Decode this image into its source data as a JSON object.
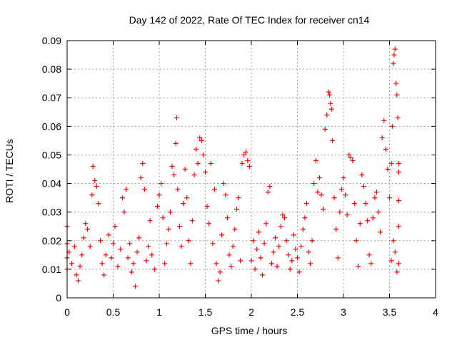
{
  "chart_data": {
    "type": "scatter",
    "title": "Day 142 of 2022, Rate Of TEC Index for receiver cn14",
    "xlabel": "GPS time / hours",
    "ylabel": "ROTI / TECUs",
    "xlim": [
      0,
      4
    ],
    "ylim": [
      0,
      0.09
    ],
    "xticks": [
      0,
      0.5,
      1,
      1.5,
      2,
      2.5,
      3,
      3.5,
      4
    ],
    "xtick_labels": [
      "0",
      "0.5",
      "1",
      "1.5",
      "2",
      "2.5",
      "3",
      "3.5",
      "4"
    ],
    "yticks": [
      0,
      0.01,
      0.02,
      0.03,
      0.04,
      0.05,
      0.06,
      0.07,
      0.08,
      0.09
    ],
    "ytick_labels": [
      "0",
      "0.01",
      "0.02",
      "0.03",
      "0.04",
      "0.05",
      "0.06",
      "0.07",
      "0.08",
      "0.09"
    ],
    "grid": true,
    "marker": "+",
    "color": "#ff0000",
    "series": [
      {
        "name": "cn14",
        "points": [
          [
            0.0,
            0.025
          ],
          [
            0.0,
            0.019
          ],
          [
            0.0,
            0.014
          ],
          [
            0.0,
            0.01
          ],
          [
            0.02,
            0.016
          ],
          [
            0.05,
            0.012
          ],
          [
            0.08,
            0.018
          ],
          [
            0.1,
            0.008
          ],
          [
            0.12,
            0.006
          ],
          [
            0.14,
            0.011
          ],
          [
            0.16,
            0.015
          ],
          [
            0.18,
            0.021
          ],
          [
            0.2,
            0.026
          ],
          [
            0.22,
            0.024
          ],
          [
            0.25,
            0.018
          ],
          [
            0.27,
            0.036
          ],
          [
            0.28,
            0.046
          ],
          [
            0.3,
            0.041
          ],
          [
            0.32,
            0.039
          ],
          [
            0.34,
            0.033
          ],
          [
            0.36,
            0.02
          ],
          [
            0.38,
            0.012
          ],
          [
            0.4,
            0.008
          ],
          [
            0.42,
            0.015
          ],
          [
            0.45,
            0.022
          ],
          [
            0.48,
            0.014
          ],
          [
            0.5,
            0.019
          ],
          [
            0.52,
            0.025
          ],
          [
            0.55,
            0.011
          ],
          [
            0.58,
            0.017
          ],
          [
            0.6,
            0.035
          ],
          [
            0.62,
            0.03
          ],
          [
            0.64,
            0.038
          ],
          [
            0.66,
            0.014
          ],
          [
            0.68,
            0.019
          ],
          [
            0.7,
            0.009
          ],
          [
            0.72,
            0.012
          ],
          [
            0.74,
            0.004
          ],
          [
            0.76,
            0.016
          ],
          [
            0.78,
            0.021
          ],
          [
            0.8,
            0.042
          ],
          [
            0.82,
            0.047
          ],
          [
            0.84,
            0.038
          ],
          [
            0.86,
            0.013
          ],
          [
            0.88,
            0.018
          ],
          [
            0.9,
            0.027
          ],
          [
            0.92,
            0.015
          ],
          [
            0.95,
            0.01
          ],
          [
            0.98,
            0.032
          ],
          [
            1.0,
            0.036
          ],
          [
            1.02,
            0.04
          ],
          [
            1.04,
            0.028
          ],
          [
            1.06,
            0.012
          ],
          [
            1.08,
            0.019
          ],
          [
            1.1,
            0.024
          ],
          [
            1.12,
            0.03
          ],
          [
            1.14,
            0.046
          ],
          [
            1.16,
            0.043
          ],
          [
            1.18,
            0.054
          ],
          [
            1.19,
            0.063
          ],
          [
            1.2,
            0.038
          ],
          [
            1.22,
            0.025
          ],
          [
            1.24,
            0.018
          ],
          [
            1.26,
            0.033
          ],
          [
            1.28,
            0.045
          ],
          [
            1.3,
            0.035
          ],
          [
            1.32,
            0.02
          ],
          [
            1.34,
            0.012
          ],
          [
            1.36,
            0.027
          ],
          [
            1.38,
            0.043
          ],
          [
            1.4,
            0.052
          ],
          [
            1.42,
            0.047
          ],
          [
            1.44,
            0.056
          ],
          [
            1.46,
            0.055
          ],
          [
            1.48,
            0.05
          ],
          [
            1.5,
            0.044
          ],
          [
            1.52,
            0.032
          ],
          [
            1.54,
            0.026
          ],
          [
            1.56,
            0.047
          ],
          [
            1.58,
            0.019
          ],
          [
            1.6,
            0.038
          ],
          [
            1.62,
            0.012
          ],
          [
            1.64,
            0.006
          ],
          [
            1.66,
            0.009
          ],
          [
            1.68,
            0.022
          ],
          [
            1.7,
            0.04
          ],
          [
            1.72,
            0.036
          ],
          [
            1.74,
            0.028
          ],
          [
            1.76,
            0.015
          ],
          [
            1.78,
            0.011
          ],
          [
            1.8,
            0.018
          ],
          [
            1.82,
            0.024
          ],
          [
            1.84,
            0.031
          ],
          [
            1.86,
            0.035
          ],
          [
            1.88,
            0.013
          ],
          [
            1.9,
            0.047
          ],
          [
            1.92,
            0.05
          ],
          [
            1.94,
            0.051
          ],
          [
            1.96,
            0.048
          ],
          [
            1.98,
            0.046
          ],
          [
            2.0,
            0.013
          ],
          [
            2.02,
            0.02
          ],
          [
            2.04,
            0.01
          ],
          [
            2.06,
            0.017
          ],
          [
            2.08,
            0.023
          ],
          [
            2.1,
            0.014
          ],
          [
            2.12,
            0.008
          ],
          [
            2.14,
            0.019
          ],
          [
            2.16,
            0.026
          ],
          [
            2.18,
            0.037
          ],
          [
            2.2,
            0.039
          ],
          [
            2.22,
            0.012
          ],
          [
            2.24,
            0.016
          ],
          [
            2.26,
            0.021
          ],
          [
            2.28,
            0.011
          ],
          [
            2.3,
            0.018
          ],
          [
            2.32,
            0.025
          ],
          [
            2.34,
            0.029
          ],
          [
            2.36,
            0.028
          ],
          [
            2.38,
            0.02
          ],
          [
            2.4,
            0.015
          ],
          [
            2.42,
            0.01
          ],
          [
            2.44,
            0.013
          ],
          [
            2.46,
            0.022
          ],
          [
            2.48,
            0.017
          ],
          [
            2.5,
            0.014
          ],
          [
            2.52,
            0.009
          ],
          [
            2.54,
            0.018
          ],
          [
            2.56,
            0.024
          ],
          [
            2.58,
            0.028
          ],
          [
            2.6,
            0.033
          ],
          [
            2.62,
            0.016
          ],
          [
            2.64,
            0.012
          ],
          [
            2.66,
            0.02
          ],
          [
            2.68,
            0.04
          ],
          [
            2.7,
            0.048
          ],
          [
            2.72,
            0.037
          ],
          [
            2.74,
            0.042
          ],
          [
            2.76,
            0.036
          ],
          [
            2.78,
            0.031
          ],
          [
            2.8,
            0.059
          ],
          [
            2.82,
            0.064
          ],
          [
            2.84,
            0.072
          ],
          [
            2.85,
            0.071
          ],
          [
            2.86,
            0.068
          ],
          [
            2.87,
            0.066
          ],
          [
            2.88,
            0.055
          ],
          [
            2.9,
            0.035
          ],
          [
            2.92,
            0.024
          ],
          [
            2.94,
            0.014
          ],
          [
            2.96,
            0.03
          ],
          [
            2.98,
            0.038
          ],
          [
            3.0,
            0.042
          ],
          [
            3.02,
            0.036
          ],
          [
            3.04,
            0.029
          ],
          [
            3.06,
            0.05
          ],
          [
            3.08,
            0.049
          ],
          [
            3.1,
            0.048
          ],
          [
            3.12,
            0.033
          ],
          [
            3.14,
            0.02
          ],
          [
            3.16,
            0.011
          ],
          [
            3.18,
            0.026
          ],
          [
            3.2,
            0.043
          ],
          [
            3.22,
            0.039
          ],
          [
            3.24,
            0.033
          ],
          [
            3.26,
            0.027
          ],
          [
            3.28,
            0.015
          ],
          [
            3.3,
            0.012
          ],
          [
            3.32,
            0.028
          ],
          [
            3.34,
            0.035
          ],
          [
            3.36,
            0.037
          ],
          [
            3.38,
            0.03
          ],
          [
            3.4,
            0.023
          ],
          [
            3.42,
            0.056
          ],
          [
            3.44,
            0.062
          ],
          [
            3.46,
            0.052
          ],
          [
            3.48,
            0.045
          ],
          [
            3.5,
            0.035
          ],
          [
            3.52,
            0.047
          ],
          [
            3.53,
            0.06
          ],
          [
            3.54,
            0.082
          ],
          [
            3.55,
            0.085
          ],
          [
            3.56,
            0.087
          ],
          [
            3.57,
            0.075
          ],
          [
            3.58,
            0.071
          ],
          [
            3.59,
            0.063
          ],
          [
            3.6,
            0.047
          ],
          [
            3.6,
            0.044
          ],
          [
            3.6,
            0.034
          ],
          [
            3.6,
            0.025
          ],
          [
            3.6,
            0.012
          ],
          [
            3.58,
            0.009
          ],
          [
            3.56,
            0.016
          ],
          [
            3.54,
            0.02
          ],
          [
            3.52,
            0.013
          ]
        ]
      }
    ]
  }
}
